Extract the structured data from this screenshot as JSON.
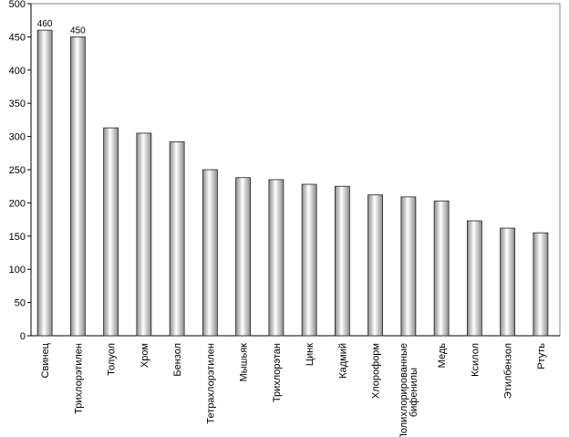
{
  "chart_data": {
    "type": "bar",
    "categories": [
      "Свинец",
      "Трихлорэтилен",
      "Толуол",
      "Хром",
      "Бензол",
      "Тетрахлорэтилен",
      "Мышьяк",
      "Трихлорэтан",
      "Цинк",
      "Кадмий",
      "Хлороформ",
      "Полихлорированные бифенилы",
      "Медь",
      "Ксилол",
      "Этилбензол",
      "Ртуть"
    ],
    "values": [
      460,
      450,
      313,
      305,
      292,
      250,
      238,
      235,
      228,
      225,
      212,
      209,
      203,
      173,
      162,
      155
    ],
    "value_labels": [
      "460",
      "450",
      null,
      null,
      null,
      null,
      null,
      null,
      null,
      null,
      null,
      null,
      null,
      null,
      null,
      null
    ],
    "color": "#b8b8b8",
    "ylim": [
      0,
      500
    ],
    "yticks": [
      0,
      50,
      100,
      150,
      200,
      250,
      300,
      350,
      400,
      450,
      500
    ],
    "grid": false
  }
}
